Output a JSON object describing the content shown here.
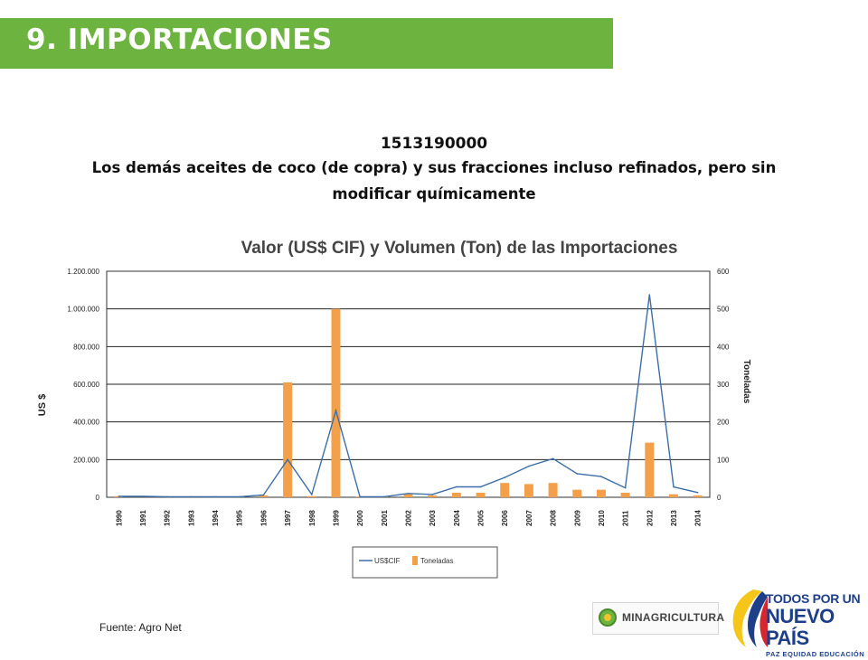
{
  "header": {
    "title": "9. IMPORTACIONES"
  },
  "subtitle": {
    "code": "1513190000",
    "line1": "Los demás aceites de coco (de copra) y sus fracciones incluso refinados, pero sin",
    "line2": "modificar químicamente"
  },
  "source": "Fuente: Agro Net",
  "logos": {
    "ministry": "MINAGRICULTURA",
    "slogan_line1": "TODOS POR UN",
    "slogan_line2": "NUEVO PAÍS",
    "slogan_line3": "PAZ EQUIDAD EDUCACIÓN"
  },
  "colors": {
    "header": "#6db33f",
    "line": "#3c6ea8",
    "bar": "#f4a04a",
    "grid": "#222222"
  },
  "chart_data": {
    "type": "bar-line",
    "title": "Valor (US$ CIF) y Volumen (Ton) de las Importaciones",
    "ylabel": "US $",
    "y2label": "Toneladas",
    "ylim": [
      0,
      1200000
    ],
    "y2lim": [
      0,
      600
    ],
    "yticks": [
      "0",
      "200.000",
      "400.000",
      "600.000",
      "800.000",
      "1.000.000",
      "1.200.000"
    ],
    "y2ticks": [
      "0",
      "100",
      "200",
      "300",
      "400",
      "500",
      "600"
    ],
    "categories": [
      "1990",
      "1991",
      "1992",
      "1993",
      "1994",
      "1995",
      "1996",
      "1997",
      "1998",
      "1999",
      "2000",
      "2001",
      "2002",
      "2003",
      "2004",
      "2005",
      "2006",
      "2007",
      "2008",
      "2009",
      "2010",
      "2011",
      "2012",
      "2013",
      "2014"
    ],
    "series": [
      {
        "name": "US$CIF",
        "type": "line",
        "axis": "left",
        "values": [
          5000,
          5000,
          3000,
          3000,
          3000,
          3000,
          12000,
          200000,
          15000,
          460000,
          3000,
          3000,
          20000,
          15000,
          55000,
          55000,
          105000,
          165000,
          205000,
          125000,
          110000,
          50000,
          1075000,
          55000,
          25000
        ]
      },
      {
        "name": "Toneladas",
        "type": "bar",
        "axis": "right",
        "values": [
          3,
          0,
          2,
          2,
          2,
          2,
          5,
          305,
          3,
          500,
          2,
          2,
          8,
          5,
          12,
          12,
          38,
          35,
          38,
          20,
          20,
          12,
          145,
          8,
          5
        ]
      }
    ],
    "legend_position": "bottom",
    "grid": true
  }
}
